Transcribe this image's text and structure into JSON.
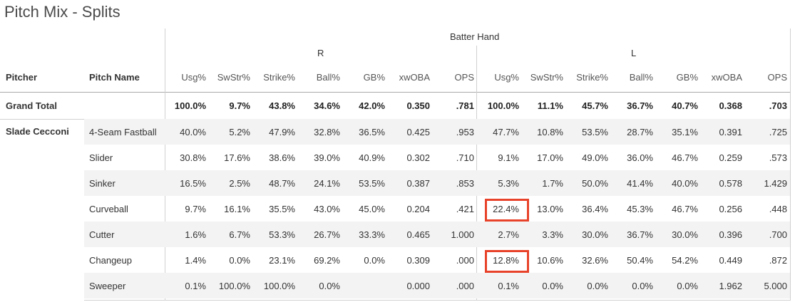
{
  "title": "Pitch Mix - Splits",
  "header": {
    "group": "Batter Hand",
    "r": "R",
    "l": "L",
    "pitcher": "Pitcher",
    "pitch_name": "Pitch Name",
    "cols": [
      "Usg%",
      "SwStr%",
      "Strike%",
      "Ball%",
      "GB%",
      "xwOBA",
      "OPS",
      "Usg%",
      "SwStr%",
      "Strike%",
      "Ball%",
      "GB%",
      "xwOBA",
      "OPS"
    ]
  },
  "grand_total": {
    "label": "Grand Total",
    "values": [
      "100.0%",
      "9.7%",
      "43.8%",
      "34.6%",
      "42.0%",
      "0.350",
      ".781",
      "100.0%",
      "11.1%",
      "45.7%",
      "36.7%",
      "40.7%",
      "0.368",
      ".703"
    ]
  },
  "pitcher": "Slade Cecconi",
  "rows": [
    {
      "pitch": "4-Seam Fastball",
      "values": [
        "40.0%",
        "5.2%",
        "47.9%",
        "32.8%",
        "36.5%",
        "0.425",
        ".953",
        "47.7%",
        "10.8%",
        "53.5%",
        "28.7%",
        "35.1%",
        "0.391",
        ".725"
      ]
    },
    {
      "pitch": "Slider",
      "values": [
        "30.8%",
        "17.6%",
        "38.6%",
        "39.0%",
        "40.9%",
        "0.302",
        ".710",
        "9.1%",
        "17.0%",
        "49.0%",
        "36.0%",
        "46.7%",
        "0.259",
        ".573"
      ]
    },
    {
      "pitch": "Sinker",
      "values": [
        "16.5%",
        "2.5%",
        "48.7%",
        "24.1%",
        "53.5%",
        "0.387",
        ".853",
        "5.3%",
        "1.7%",
        "50.0%",
        "41.4%",
        "40.0%",
        "0.578",
        "1.429"
      ]
    },
    {
      "pitch": "Curveball",
      "values": [
        "9.7%",
        "16.1%",
        "35.5%",
        "43.0%",
        "45.0%",
        "0.204",
        ".421",
        "22.4%",
        "13.0%",
        "36.4%",
        "45.3%",
        "46.7%",
        "0.256",
        ".448"
      ]
    },
    {
      "pitch": "Cutter",
      "values": [
        "1.6%",
        "6.7%",
        "53.3%",
        "26.7%",
        "33.3%",
        "0.465",
        "1.000",
        "2.7%",
        "3.3%",
        "30.0%",
        "36.7%",
        "30.0%",
        "0.396",
        ".700"
      ]
    },
    {
      "pitch": "Changeup",
      "values": [
        "1.4%",
        "0.0%",
        "23.1%",
        "69.2%",
        "0.0%",
        "0.309",
        ".000",
        "12.8%",
        "10.6%",
        "32.6%",
        "50.4%",
        "54.2%",
        "0.449",
        ".872"
      ]
    },
    {
      "pitch": "Sweeper",
      "values": [
        "0.1%",
        "100.0%",
        "100.0%",
        "0.0%",
        "",
        "0.000",
        ".000",
        "0.1%",
        "0.0%",
        "0.0%",
        "0.0%",
        "0.0%",
        "1.962",
        "5.000"
      ]
    }
  ],
  "highlight_color": "#e8432a"
}
